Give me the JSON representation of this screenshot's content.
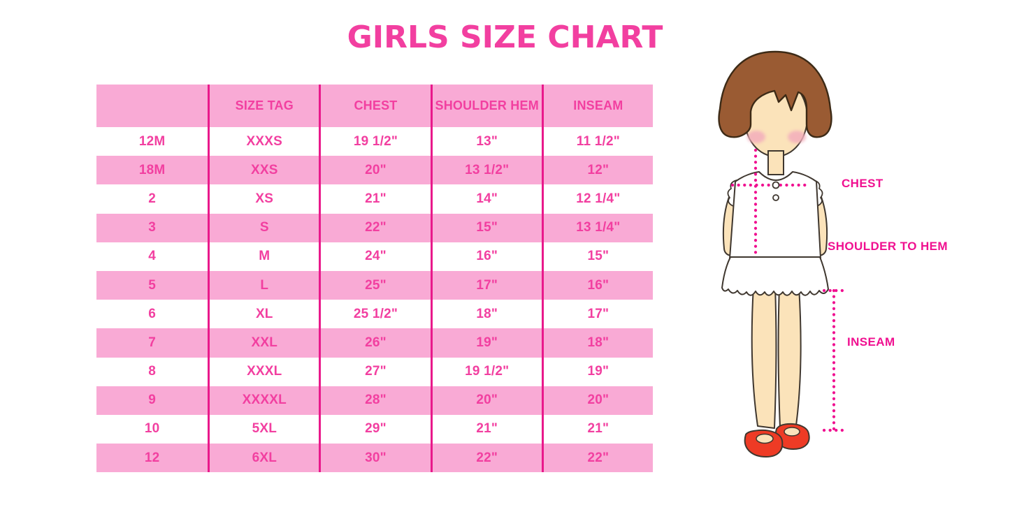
{
  "page": {
    "title": "GIRLS SIZE CHART"
  },
  "colors": {
    "pink_row": "#f9aad5",
    "magenta_line": "#e9198b",
    "text_pink": "#f23fa0",
    "label_pink": "#f01090",
    "hair_brown": "#9a5b33",
    "skin": "#fbe3ba",
    "blush": "#f3aebc",
    "shoe_red": "#ee3b25"
  },
  "chart_data": {
    "type": "table",
    "title": "GIRLS SIZE CHART",
    "columns": [
      "",
      "SIZE TAG",
      "CHEST",
      "SHOULDER HEM",
      "INSEAM"
    ],
    "rows": [
      [
        "12M",
        "XXXS",
        "19 1/2\"",
        "13\"",
        "11 1/2\""
      ],
      [
        "18M",
        "XXS",
        "20\"",
        "13 1/2\"",
        "12\""
      ],
      [
        "2",
        "XS",
        "21\"",
        "14\"",
        "12 1/4\""
      ],
      [
        "3",
        "S",
        "22\"",
        "15\"",
        "13 1/4\""
      ],
      [
        "4",
        "M",
        "24\"",
        "16\"",
        "15\""
      ],
      [
        "5",
        "L",
        "25\"",
        "17\"",
        "16\""
      ],
      [
        "6",
        "XL",
        "25 1/2\"",
        "18\"",
        "17\""
      ],
      [
        "7",
        "XXL",
        "26\"",
        "19\"",
        "18\""
      ],
      [
        "8",
        "XXXL",
        "27\"",
        "19 1/2\"",
        "19\""
      ],
      [
        "9",
        "XXXXL",
        "28\"",
        "20\"",
        "20\""
      ],
      [
        "10",
        "5XL",
        "29\"",
        "21\"",
        "21\""
      ],
      [
        "12",
        "6XL",
        "30\"",
        "22\"",
        "22\""
      ]
    ],
    "layout_hints": {
      "striping": "header and alternate rows pink, others white",
      "column_separators": "magenta vertical lines",
      "text_alignment": "center"
    }
  },
  "figure": {
    "chest_label": "CHEST",
    "shoulder_label": "SHOULDER TO HEM",
    "inseam_label": "INSEAM"
  }
}
